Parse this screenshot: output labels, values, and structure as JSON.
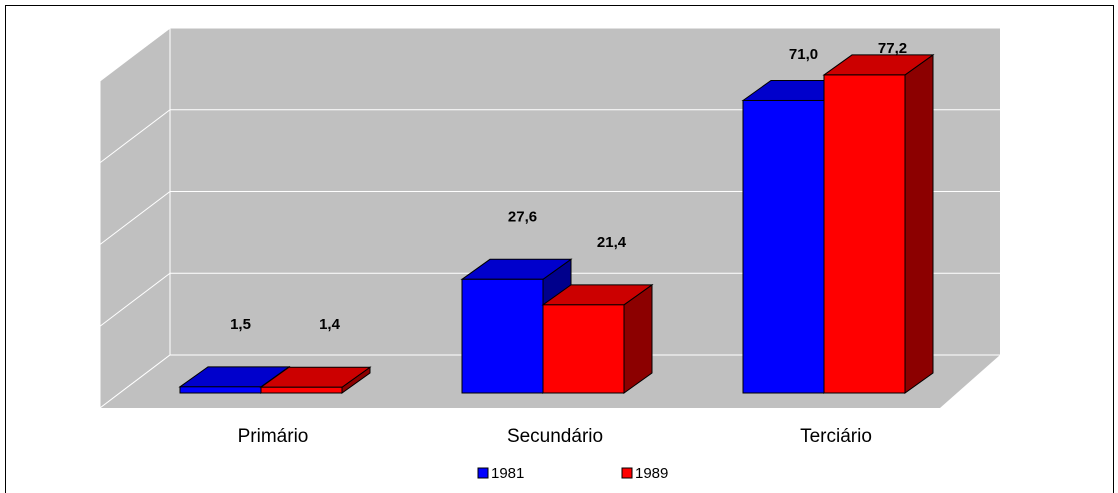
{
  "chart_data": {
    "type": "bar3d",
    "categories": [
      "Primário",
      "Secundário",
      "Terciário"
    ],
    "series": [
      {
        "name": "1981",
        "color": "#0000ff",
        "values": [
          1.5,
          27.6,
          71.0
        ],
        "value_labels": [
          "1,5",
          "27,6",
          "71,0"
        ]
      },
      {
        "name": "1989",
        "color": "#ff0000",
        "values": [
          1.4,
          21.4,
          77.2
        ],
        "value_labels": [
          "1,4",
          "21,4",
          "77,2"
        ]
      }
    ],
    "ylim": [
      0,
      80
    ],
    "yticks": [
      0,
      20,
      40,
      60,
      80
    ],
    "grid": true
  }
}
